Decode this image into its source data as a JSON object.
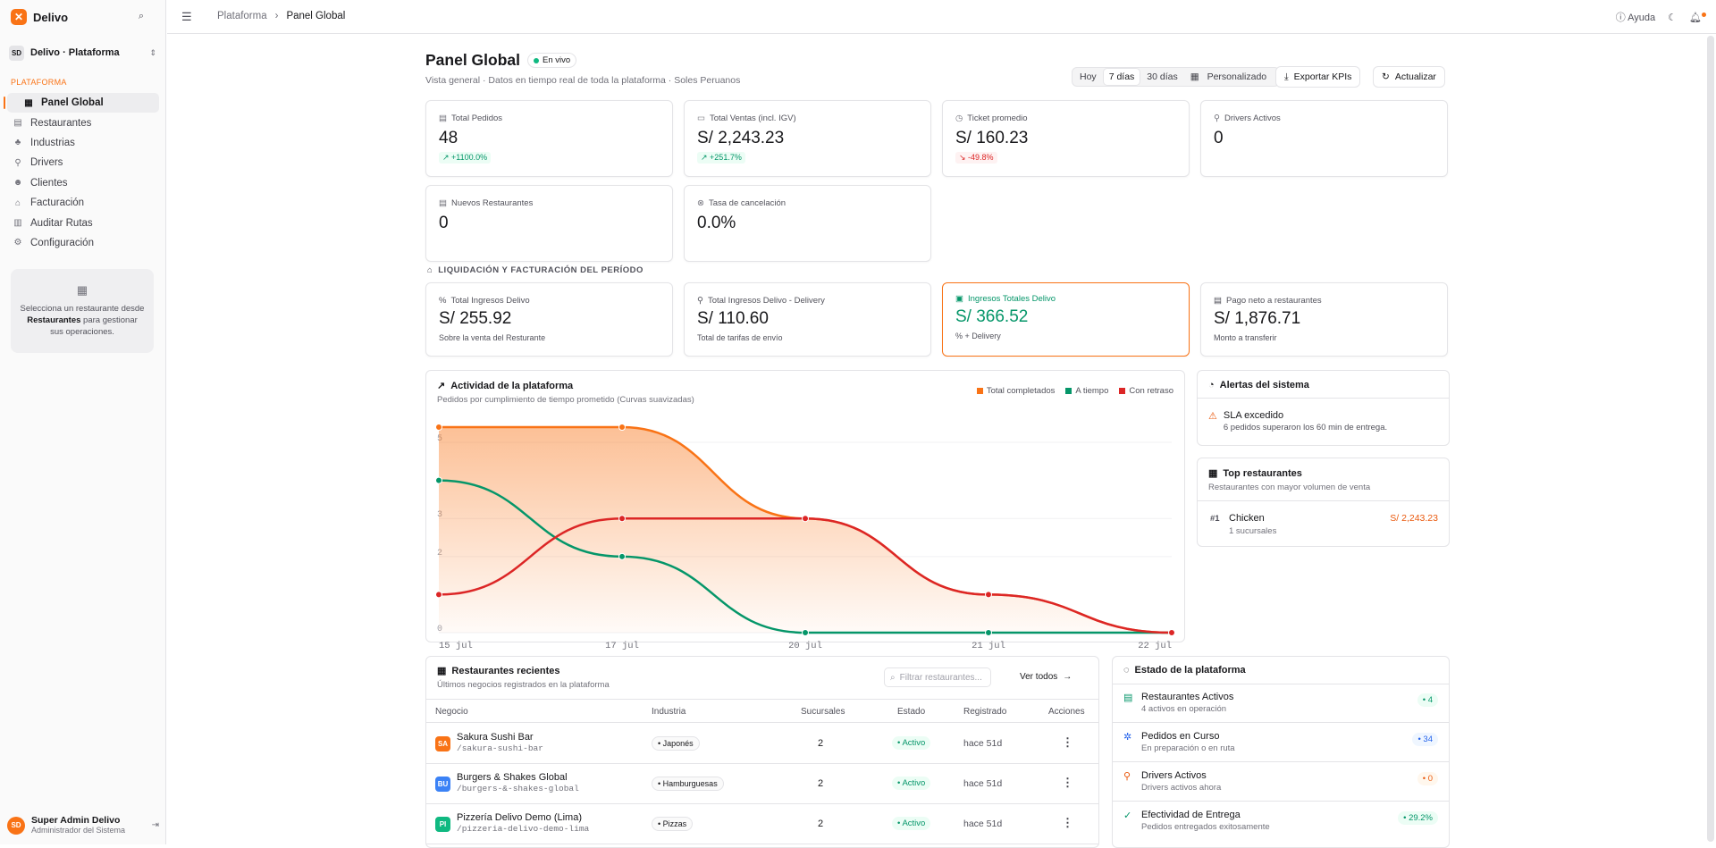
{
  "app": {
    "name": "Delivo",
    "workspace": "Delivo · Plataforma",
    "workspace_initials": "SD"
  },
  "sidebar": {
    "section": "PLATAFORMA",
    "items": [
      {
        "label": "Panel Global",
        "icon": "dashboard-icon",
        "active": true
      },
      {
        "label": "Restaurantes",
        "icon": "store-icon"
      },
      {
        "label": "Industrias",
        "icon": "shapes-icon"
      },
      {
        "label": "Drivers",
        "icon": "bike-icon"
      },
      {
        "label": "Clientes",
        "icon": "users-icon"
      },
      {
        "label": "Facturación",
        "icon": "bank-icon"
      },
      {
        "label": "Auditar Rutas",
        "icon": "map-icon"
      },
      {
        "label": "Configuración",
        "icon": "gear-icon"
      }
    ],
    "card": {
      "line1": "Selecciona un restaurante desde",
      "bold": "Restaurantes",
      "line2": "para gestionar sus operaciones."
    },
    "user": {
      "initials": "SD",
      "name": "Super Admin Delivo",
      "role": "Administrador del Sistema"
    }
  },
  "topbar": {
    "breadcrumb": [
      "Plataforma",
      "Panel Global"
    ],
    "help": "Ayuda"
  },
  "page": {
    "title": "Panel Global",
    "live": "En vivo",
    "subtitle": "Vista general · Datos en tiempo real de toda la plataforma · Soles Peruanos",
    "ranges": [
      "Hoy",
      "7 días",
      "30 días",
      "Personalizado"
    ],
    "active_range": "7 días",
    "export": "Exportar KPIs",
    "refresh": "Actualizar"
  },
  "kpis": [
    {
      "label": "Total Pedidos",
      "value": "48",
      "delta": "+1100.0%",
      "trend": "up",
      "icon": "receipt-icon"
    },
    {
      "label": "Total Ventas (incl. IGV)",
      "value": "S/ 2,243.23",
      "delta": "+251.7%",
      "trend": "up",
      "icon": "money-icon"
    },
    {
      "label": "Ticket promedio",
      "value": "S/ 160.23",
      "delta": "-49.8%",
      "trend": "down",
      "icon": "timer-icon"
    },
    {
      "label": "Drivers Activos",
      "value": "0",
      "icon": "bike-icon"
    },
    {
      "label": "Nuevos Restaurantes",
      "value": "0",
      "icon": "store-icon"
    },
    {
      "label": "Tasa de cancelación",
      "value": "0.0%",
      "icon": "cancel-icon"
    }
  ],
  "liquidacion": {
    "title": "LIQUIDACIÓN Y FACTURACIÓN DEL PERÍODO",
    "cards": [
      {
        "label": "Total Ingresos Delivo",
        "value": "S/ 255.92",
        "sub": "Sobre la venta del Resturante",
        "icon": "percent-icon"
      },
      {
        "label": "Total Ingresos Delivo - Delivery",
        "value": "S/ 110.60",
        "sub": "Total de tarifas de envío",
        "icon": "bike-icon"
      },
      {
        "label": "Ingresos Totales Delivo",
        "value": "S/ 366.52",
        "sub": "% + Delivery",
        "icon": "ledger-icon",
        "highlight": true
      },
      {
        "label": "Pago neto a restaurantes",
        "value": "S/ 1,876.71",
        "sub": "Monto a transferir",
        "icon": "store-icon"
      }
    ]
  },
  "activity": {
    "title": "Actividad de la plataforma",
    "subtitle": "Pedidos por cumplimiento de tiempo prometido (Curvas suavizadas)"
  },
  "chart_data": {
    "type": "area",
    "categories": [
      "15 jul",
      "17 jul",
      "20 jul",
      "21 jul",
      "22 jul"
    ],
    "yticks": [
      "0",
      "2",
      "3",
      "5"
    ],
    "ylim": [
      0,
      5.4
    ],
    "series": [
      {
        "name": "Total completados",
        "color": "#f97316",
        "values": [
          5.4,
          5.4,
          3,
          1,
          0
        ]
      },
      {
        "name": "A tiempo",
        "color": "#059669",
        "values": [
          4,
          2,
          0,
          0,
          0
        ]
      },
      {
        "name": "Con retraso",
        "color": "#dc2626",
        "values": [
          1,
          3,
          3,
          1,
          0
        ]
      }
    ],
    "legend": "top-right"
  },
  "alerts": {
    "title": "Alertas del sistema",
    "item_title": "SLA excedido",
    "item_desc": "6 pedidos superaron los 60 min de entrega."
  },
  "top": {
    "title": "Top restaurantes",
    "subtitle": "Restaurantes con mayor volumen de venta",
    "rank": "#1",
    "name": "Chicken",
    "branches": "1 sucursales",
    "amount": "S/ 2,243.23"
  },
  "recent": {
    "title": "Restaurantes recientes",
    "subtitle": "Últimos negocios registrados en la plataforma",
    "filter_placeholder": "Filtrar restaurantes...",
    "see_all": "Ver todos",
    "columns": [
      "Negocio",
      "Industria",
      "Sucursales",
      "Estado",
      "Registrado",
      "Acciones"
    ],
    "rows": [
      {
        "initials": "SA",
        "color": "#f97316",
        "name": "Sakura Sushi Bar",
        "slug": "/sakura-sushi-bar",
        "industry": "Japonés",
        "branches": "2",
        "status": "Activo",
        "registered": "hace 51d"
      },
      {
        "initials": "BU",
        "color": "#3b82f6",
        "name": "Burgers & Shakes Global",
        "slug": "/burgers-&-shakes-global",
        "industry": "Hamburguesas",
        "branches": "2",
        "status": "Activo",
        "registered": "hace 51d"
      },
      {
        "initials": "PI",
        "color": "#10b981",
        "name": "Pizzería Delivo Demo (Lima)",
        "slug": "/pizzeria-delivo-demo-lima",
        "industry": "Pizzas",
        "branches": "2",
        "status": "Activo",
        "registered": "hace 51d"
      }
    ]
  },
  "status": {
    "title": "Estado de la plataforma",
    "items": [
      {
        "title": "Restaurantes Activos",
        "sub": "4 activos en operación",
        "badge": "4",
        "color": "#059669",
        "bg": "#ecfdf5",
        "icon": "store-icon"
      },
      {
        "title": "Pedidos en Curso",
        "sub": "En preparación o en ruta",
        "badge": "34",
        "color": "#2563eb",
        "bg": "#eff6ff",
        "icon": "loader-icon"
      },
      {
        "title": "Drivers Activos",
        "sub": "Drivers activos ahora",
        "badge": "0",
        "color": "#ea580c",
        "bg": "#fff7ed",
        "icon": "bike-icon"
      },
      {
        "title": "Efectividad de Entrega",
        "sub": "Pedidos entregados exitosamente",
        "badge": "29.2%",
        "color": "#059669",
        "bg": "#ecfdf5",
        "icon": "check-circle-icon"
      }
    ]
  }
}
